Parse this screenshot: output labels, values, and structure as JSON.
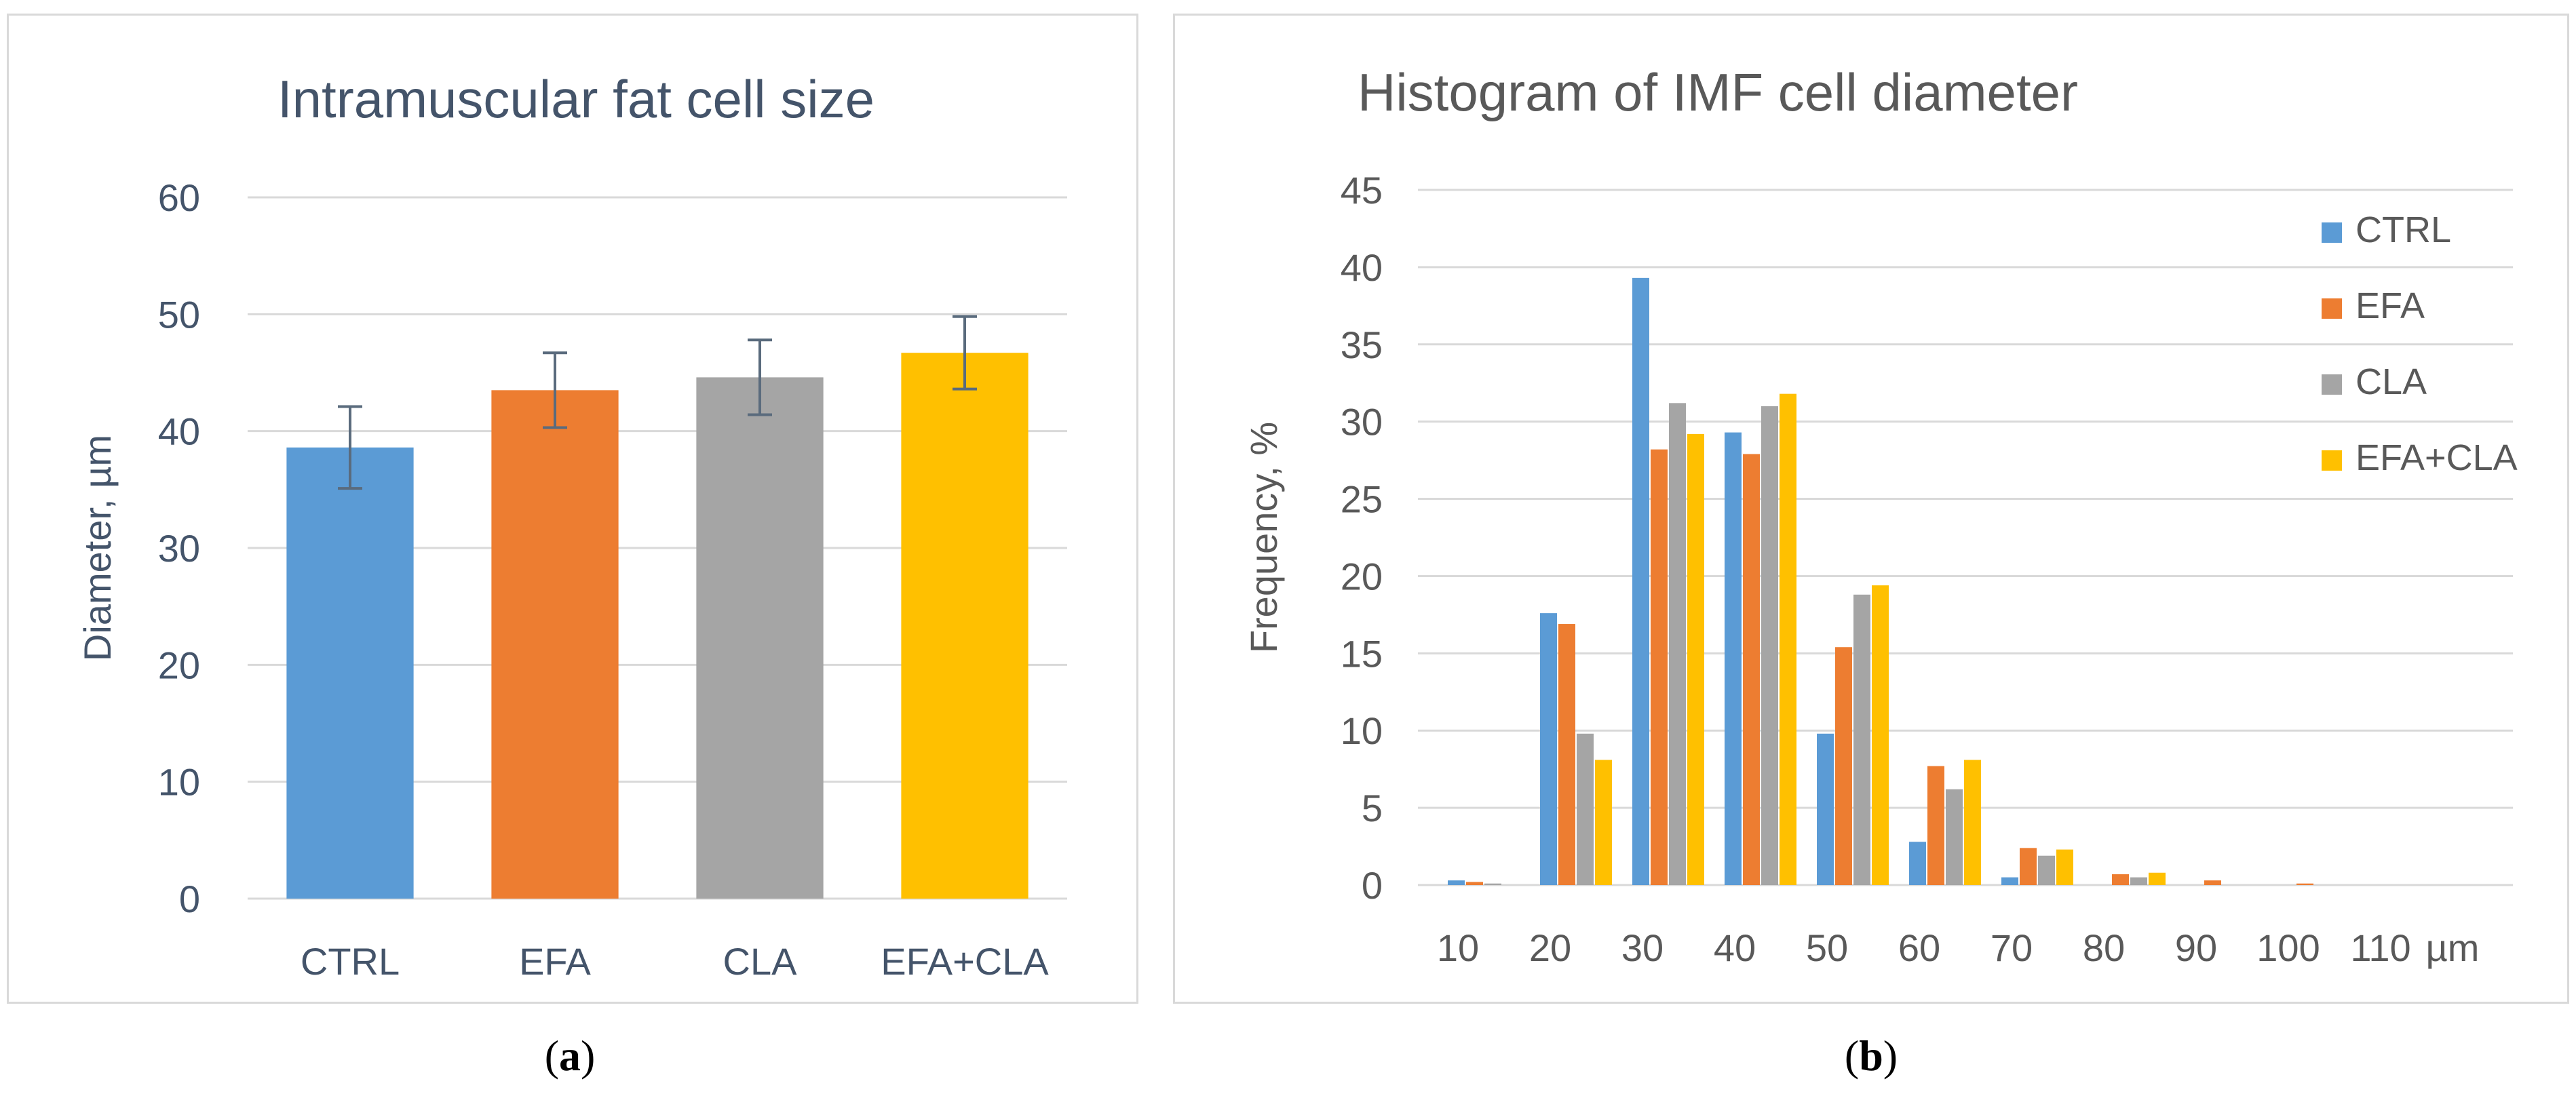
{
  "colors": {
    "CTRL": "#5b9bd5",
    "EFA": "#ed7d31",
    "CLA": "#a5a5a5",
    "EFA+CLA": "#ffc000",
    "text": "#44546a",
    "axis_text": "#595959",
    "grid": "#d9d9d9",
    "error_bar": "#5a6b7d"
  },
  "captions": {
    "a_open": "(",
    "a_letter": "a",
    "a_close": ")",
    "b_open": "(",
    "b_letter": "b",
    "b_close": ")"
  },
  "chart_data": [
    {
      "id": "a",
      "type": "bar",
      "title": "Intramuscular fat cell size",
      "xlabel": "",
      "ylabel": "Diameter, µm",
      "ylim": [
        0,
        60
      ],
      "yticks": [
        0,
        10,
        20,
        30,
        40,
        50,
        60
      ],
      "grid": true,
      "legend": "none",
      "categories": [
        "CTRL",
        "EFA",
        "CLA",
        "EFA+CLA"
      ],
      "values": [
        38.6,
        43.5,
        44.6,
        46.7
      ],
      "errors": [
        3.5,
        3.2,
        3.2,
        3.1
      ]
    },
    {
      "id": "b",
      "type": "bar",
      "title": "Histogram of IMF cell diameter",
      "xlabel": "µm",
      "ylabel": "Frequency, %",
      "ylim": [
        0,
        45
      ],
      "yticks": [
        0,
        5,
        10,
        15,
        20,
        25,
        30,
        35,
        40,
        45
      ],
      "grid": true,
      "legend": "right",
      "categories": [
        "10",
        "20",
        "30",
        "40",
        "50",
        "60",
        "70",
        "80",
        "90",
        "100",
        "110"
      ],
      "series": [
        {
          "name": "CTRL",
          "values": [
            0.3,
            17.6,
            39.3,
            29.3,
            9.8,
            2.8,
            0.5,
            0.0,
            0.0,
            0.0,
            0.0
          ]
        },
        {
          "name": "EFA",
          "values": [
            0.2,
            16.9,
            28.2,
            27.9,
            15.4,
            7.7,
            2.4,
            0.7,
            0.3,
            0.1,
            0.0
          ]
        },
        {
          "name": "CLA",
          "values": [
            0.1,
            9.8,
            31.2,
            31.0,
            18.8,
            6.2,
            1.9,
            0.5,
            0.0,
            0.0,
            0.0
          ]
        },
        {
          "name": "EFA+CLA",
          "values": [
            0.0,
            8.1,
            29.2,
            31.8,
            19.4,
            8.1,
            2.3,
            0.8,
            0.0,
            0.0,
            0.0
          ]
        }
      ]
    }
  ]
}
